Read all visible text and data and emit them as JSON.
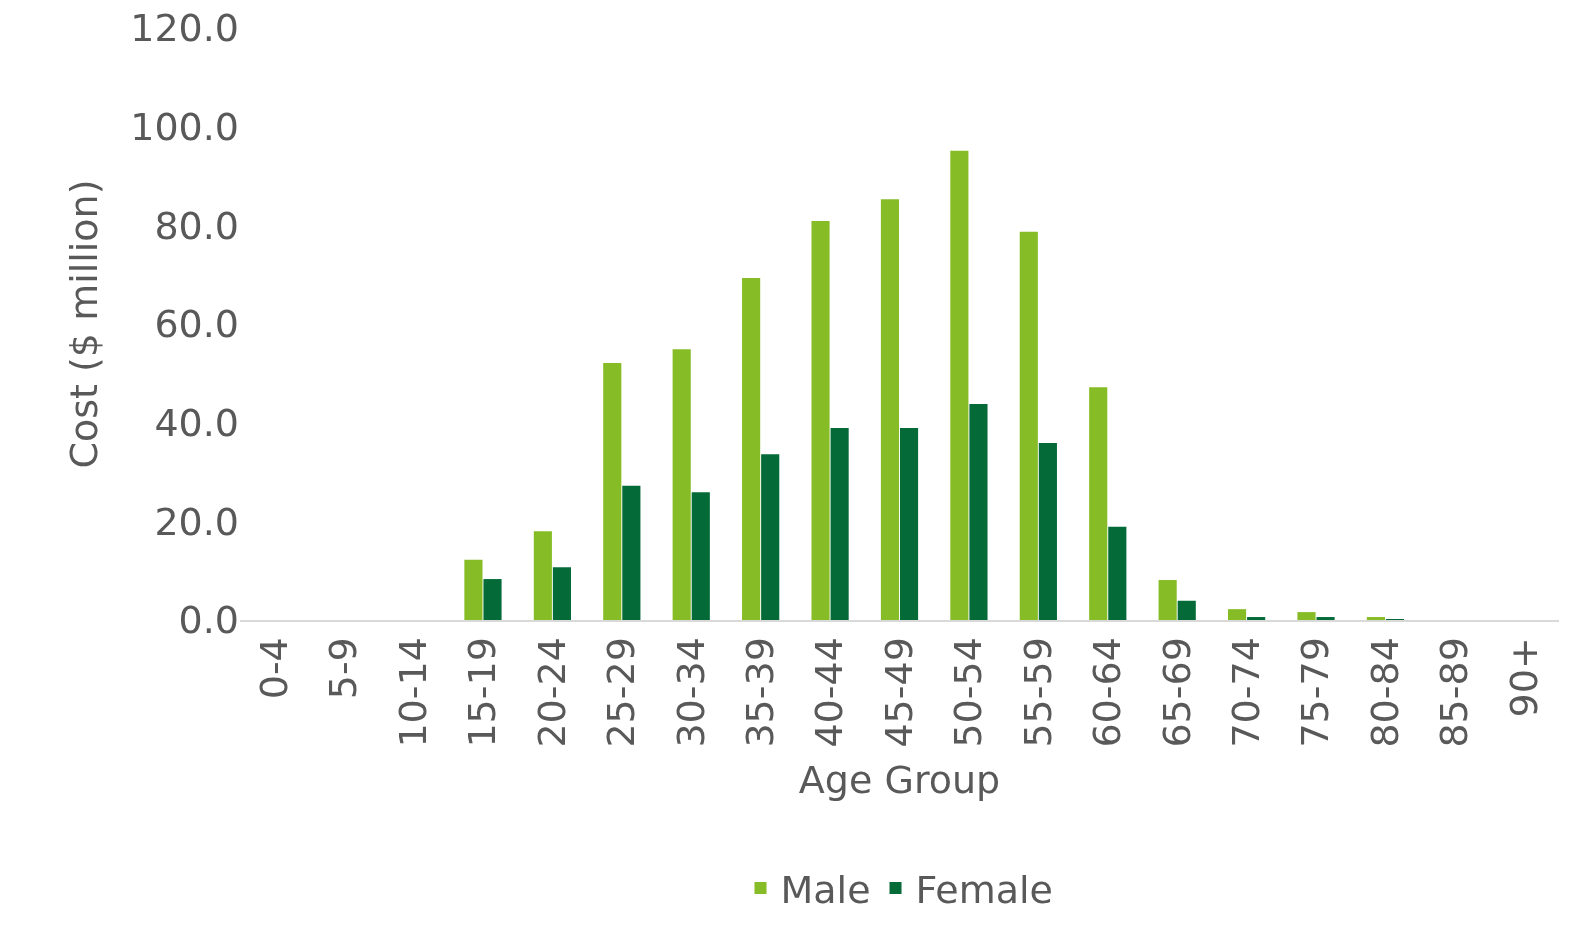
{
  "chart_data": {
    "type": "bar",
    "xlabel": "Age Group",
    "ylabel": "Cost ($ million)",
    "categories": [
      "0-4",
      "5-9",
      "10-14",
      "15-19",
      "20-24",
      "25-29",
      "30-34",
      "35-39",
      "40-44",
      "45-49",
      "50-54",
      "55-59",
      "60-64",
      "65-69",
      "70-74",
      "75-79",
      "80-84",
      "85-89",
      "90+"
    ],
    "series": [
      {
        "name": "Male",
        "color": "#86bc25",
        "values": [
          0,
          0,
          0,
          12.2,
          18.0,
          52.1,
          54.9,
          69.3,
          80.9,
          85.3,
          95.1,
          78.7,
          47.2,
          8.1,
          2.2,
          1.6,
          0.6,
          0,
          0
        ]
      },
      {
        "name": "Female",
        "color": "#046a38",
        "values": [
          0,
          0,
          0,
          8.3,
          10.7,
          27.2,
          25.9,
          33.6,
          38.9,
          38.9,
          43.8,
          35.9,
          18.9,
          3.9,
          0.6,
          0.6,
          0.1,
          0,
          0
        ]
      }
    ],
    "ylim": [
      0,
      120
    ],
    "yticks": [
      {
        "value": 0,
        "label": "0.0"
      },
      {
        "value": 20,
        "label": "20.0"
      },
      {
        "value": 40,
        "label": "40.0"
      },
      {
        "value": 60,
        "label": "60.0"
      },
      {
        "value": 80,
        "label": "80.0"
      },
      {
        "value": 100,
        "label": "100.0"
      },
      {
        "value": 120,
        "label": "120.0"
      }
    ],
    "grid": false,
    "legend": "bottom"
  }
}
